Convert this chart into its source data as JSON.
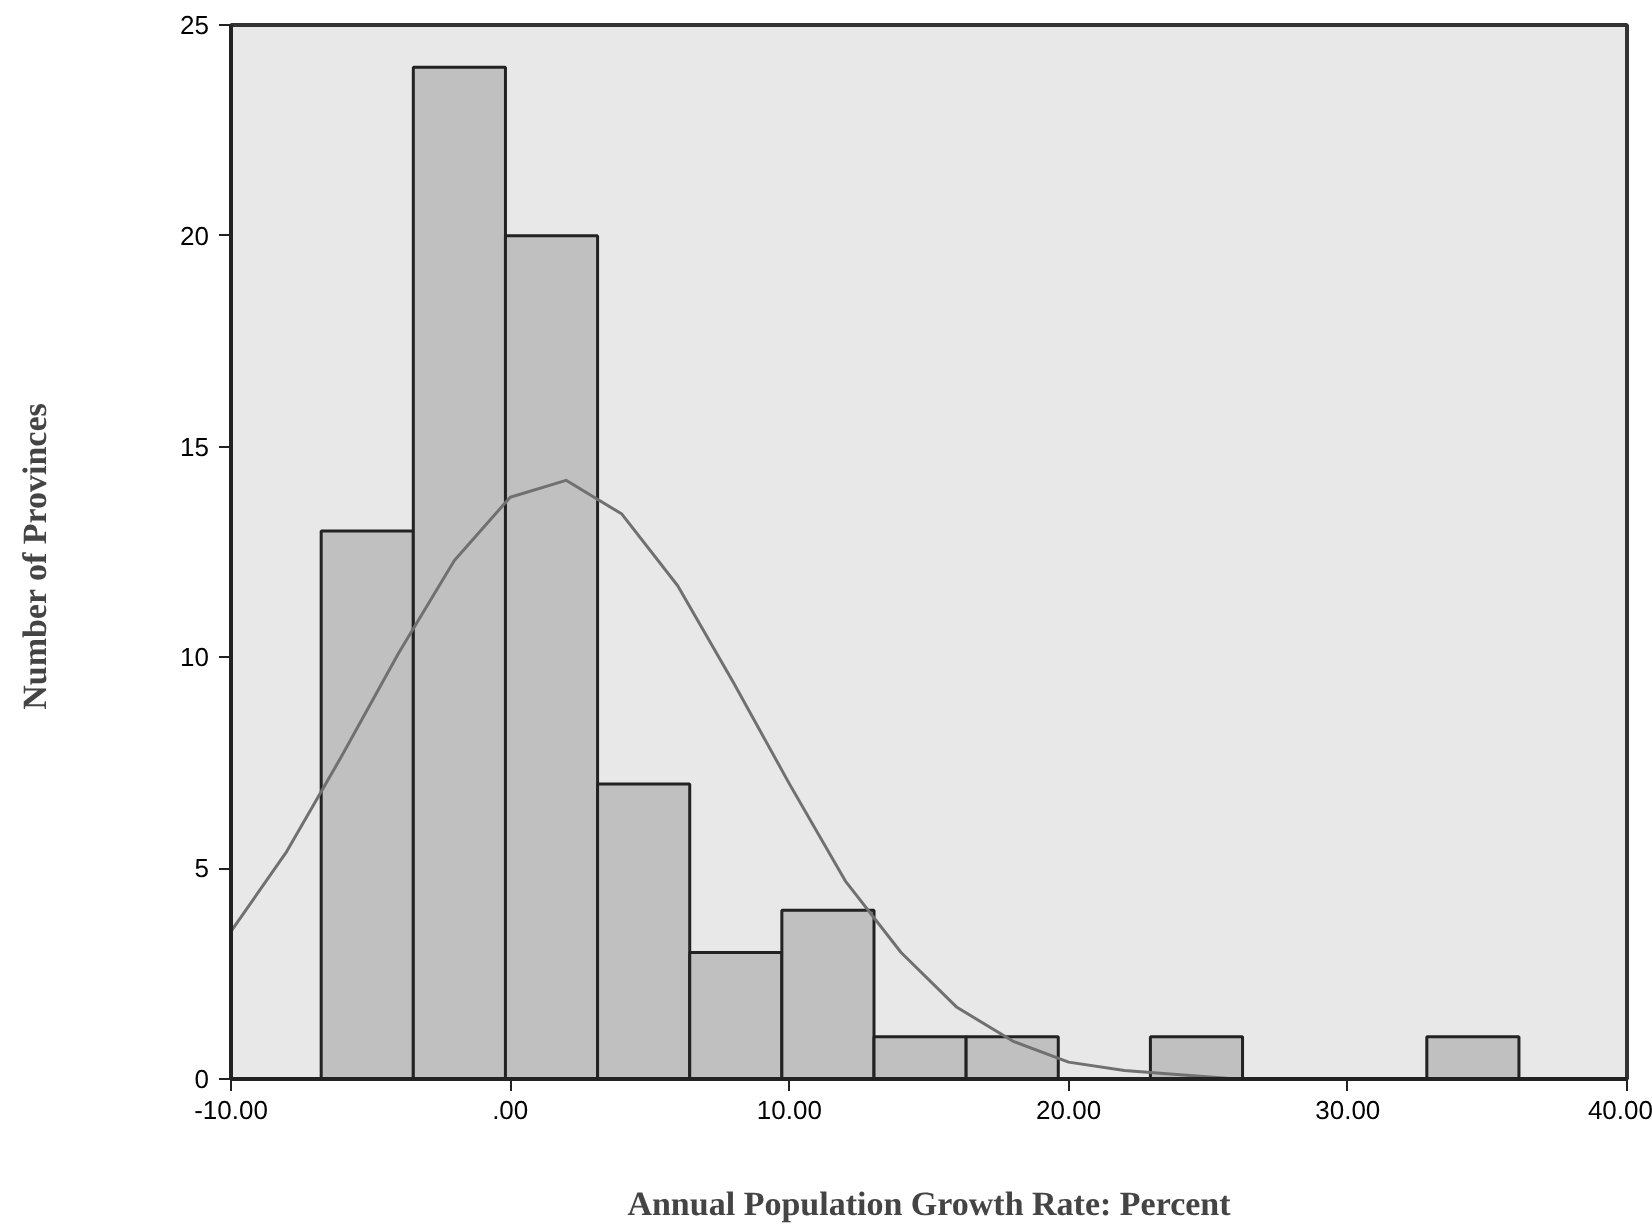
{
  "chart_data": {
    "type": "histogram",
    "xlabel": "Annual Population Growth Rate: Percent",
    "ylabel": "Number of  Provinces",
    "bins": [
      -6.77,
      -3.47,
      -0.17,
      3.13,
      6.43,
      9.73,
      13.03,
      16.33,
      19.63,
      22.93,
      26.23,
      29.53,
      32.83,
      36.13
    ],
    "values": [
      13,
      24,
      20,
      7,
      3,
      4,
      1,
      1,
      0,
      1,
      0,
      0,
      1
    ],
    "color": "#c0c0c0",
    "series": [
      {
        "type": "line",
        "color": "#707070",
        "x": [
          -10,
          -8,
          -6,
          -4,
          -2,
          0,
          2,
          4,
          6,
          8,
          10,
          12,
          14,
          16,
          18,
          20,
          22,
          24,
          26,
          28
        ],
        "values": [
          3.5,
          5.4,
          7.7,
          10.1,
          12.3,
          13.8,
          14.2,
          13.4,
          11.7,
          9.4,
          7.0,
          4.7,
          3.0,
          1.7,
          0.9,
          0.4,
          0.2,
          0.1,
          0.0,
          0.0
        ]
      }
    ],
    "xlim": [
      -10,
      40
    ],
    "xticks": [
      {
        "value": -10,
        "label": "-10.00"
      },
      {
        "value": 0,
        "label": ".00"
      },
      {
        "value": 10,
        "label": "10.00"
      },
      {
        "value": 20,
        "label": "20.00"
      },
      {
        "value": 30,
        "label": "30.00"
      },
      {
        "value": 40,
        "label": "40.00"
      }
    ],
    "ylim": [
      0,
      25
    ],
    "yticks": [
      0,
      5,
      10,
      15,
      20,
      25
    ],
    "grid": false
  }
}
